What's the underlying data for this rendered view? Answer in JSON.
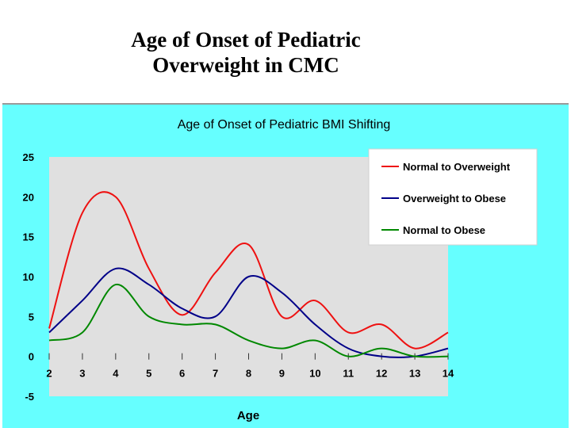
{
  "slide": {
    "title_line1": "Age of Onset of Pediatric",
    "title_line2": "Overweight in CMC"
  },
  "chart_data": {
    "type": "line",
    "title": "Age of Onset of Pediatric BMI Shifting",
    "xlabel": "Age",
    "ylabel": "",
    "x": [
      2,
      3,
      4,
      5,
      6,
      7,
      8,
      9,
      10,
      11,
      12,
      13,
      14
    ],
    "xlim": [
      2,
      14
    ],
    "ylim": [
      -5,
      25
    ],
    "yticks": [
      25,
      20,
      15,
      10,
      5,
      0,
      -5
    ],
    "grid": false,
    "legend_position": "top-right",
    "plot_background": "#e0e0e0",
    "panel_background": "#66ffff",
    "series": [
      {
        "name": "Normal to Overweight",
        "color": "#ee1111",
        "values": [
          3.5,
          18,
          20,
          11,
          5.2,
          10.5,
          14,
          5,
          7,
          3,
          4,
          1,
          3
        ]
      },
      {
        "name": "Overweight to Obese",
        "color": "#000088",
        "values": [
          3,
          7,
          11,
          9,
          6,
          5,
          10,
          8,
          4,
          1,
          0,
          0,
          1
        ]
      },
      {
        "name": "Normal to Obese",
        "color": "#008800",
        "values": [
          2,
          3,
          9,
          5,
          4,
          4,
          2,
          1,
          2,
          0,
          1,
          0,
          0
        ]
      }
    ]
  }
}
